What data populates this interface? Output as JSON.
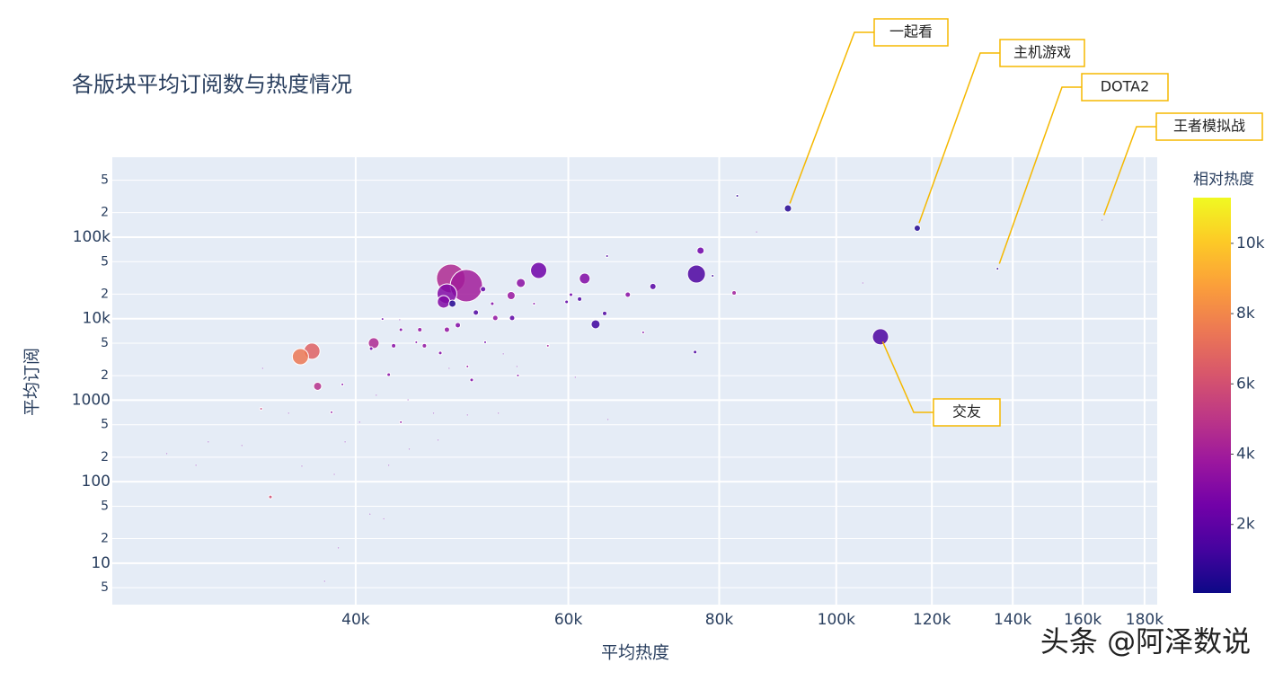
{
  "chart_data": {
    "type": "scatter",
    "title": "各版块平均订阅数与热度情况",
    "x_label": "平均热度",
    "y_label": "平均订阅",
    "log_x": true,
    "log_y": true,
    "grid": true,
    "xlim": [
      25150,
      184400
    ],
    "ylim": [
      3.1,
      957000
    ],
    "xticks": [
      {
        "value": 40000,
        "label": "40k"
      },
      {
        "value": 60000,
        "label": "60k"
      },
      {
        "value": 80000,
        "label": "80k"
      },
      {
        "value": 100000,
        "label": "100k"
      },
      {
        "value": 120000,
        "label": "120k"
      },
      {
        "value": 140000,
        "label": "140k"
      },
      {
        "value": 160000,
        "label": "160k"
      },
      {
        "value": 180000,
        "label": "180k"
      }
    ],
    "yticks": [
      5,
      10,
      {
        "value": 20,
        "label": "2"
      },
      {
        "value": 50,
        "label": "5"
      },
      100,
      {
        "value": 200,
        "label": "2"
      },
      {
        "value": 500,
        "label": "5"
      },
      1000,
      {
        "value": 2000,
        "label": "2"
      },
      {
        "value": 5000,
        "label": "5"
      },
      {
        "value": 10000,
        "label": "10k"
      },
      {
        "value": 20000,
        "label": "2"
      },
      {
        "value": 50000,
        "label": "5"
      },
      {
        "value": 100000,
        "label": "100k"
      },
      {
        "value": 200000,
        "label": "2"
      },
      {
        "value": 500000,
        "label": "5"
      }
    ],
    "x": [
      91200,
      116700,
      136000,
      166000,
      108800,
      47960,
      49400,
      47600,
      47300,
      56700,
      76600,
      61900,
      54800,
      53800,
      36800,
      36000,
      41400,
      37200,
      77200,
      70500,
      63200,
      82300,
      67200,
      48100,
      51000,
      50300,
      52200,
      53900,
      64300,
      61300,
      60300,
      59800,
      48600,
      47600,
      45200,
      43600,
      43000,
      45600,
      47000,
      49900,
      41200,
      42600,
      43600,
      34000,
      33400,
      38200,
      57700,
      69200,
      76400,
      64600,
      82800,
      79000,
      51900,
      56200,
      51200,
      44900,
      49500,
      54500,
      42100,
      39000,
      27900,
      29500,
      30200,
      32200,
      33500,
      35200,
      36100,
      38400,
      38700,
      37700,
      39200,
      41100,
      42200,
      42600,
      44300,
      46800,
      49500,
      52500,
      54400,
      60800,
      64700,
      105200,
      85900,
      44200,
      46400,
      47800,
      53000,
      43500,
      40300,
      41600
    ],
    "y": [
      225000,
      129000,
      41000,
      162000,
      6000,
      31100,
      25400,
      20200,
      16100,
      39100,
      35300,
      31100,
      27400,
      19200,
      3990,
      3420,
      5010,
      1480,
      68400,
      24800,
      8530,
      20700,
      19700,
      15300,
      23000,
      11900,
      10200,
      10200,
      11600,
      17400,
      19700,
      16100,
      8320,
      7330,
      7330,
      7330,
      4650,
      4650,
      3790,
      1770,
      4300,
      2060,
      537,
      65,
      785,
      710,
      4650,
      6790,
      3890,
      58700,
      321000,
      33600,
      15300,
      15300,
      5140,
      5140,
      2590,
      2010,
      9900,
      1560,
      221,
      159,
      308,
      278,
      2460,
      692,
      155,
      123,
      15.4,
      6.0,
      308,
      40,
      35,
      159,
      251,
      324,
      658,
      692,
      2590,
      1910,
      580,
      27400,
      116000,
      1010,
      692,
      2460,
      3700,
      9690,
      537,
      1150
    ],
    "sizes": [
      8,
      7,
      3,
      2,
      18,
      32,
      36,
      22,
      14,
      18,
      20,
      12,
      10,
      9,
      18,
      18,
      12,
      9,
      8,
      7,
      10,
      5,
      6,
      8,
      6,
      6,
      6,
      6,
      5,
      5,
      4,
      4,
      6,
      6,
      5,
      4,
      5,
      5,
      4,
      4,
      4,
      4,
      3,
      4,
      3,
      3,
      3,
      3,
      4,
      3,
      3,
      3,
      4,
      3,
      3,
      3,
      3,
      3,
      3,
      3,
      2,
      2,
      2,
      2,
      2,
      2,
      2,
      2,
      2,
      2,
      2,
      2,
      2,
      2,
      2,
      2,
      2,
      2,
      2,
      2,
      2,
      2,
      2,
      2,
      2,
      2,
      2,
      2,
      2,
      2
    ],
    "color_values": [
      600,
      500,
      800,
      900,
      1500,
      4500,
      4000,
      3000,
      3000,
      2500,
      1500,
      3000,
      3300,
      3700,
      6700,
      7500,
      4500,
      4800,
      2500,
      1800,
      1200,
      4000,
      3200,
      500,
      2000,
      1500,
      3500,
      2000,
      1500,
      1500,
      2500,
      2000,
      3000,
      3500,
      3500,
      3000,
      3200,
      3500,
      3000,
      3000,
      2500,
      3200,
      3500,
      6000,
      5500,
      3500,
      4000,
      3000,
      1500,
      1500,
      800,
      1000,
      3000,
      3000,
      2500,
      3000,
      3500,
      3000,
      2500,
      3000,
      2500,
      2500,
      2500,
      2500,
      2500,
      2500,
      2500,
      2500,
      2500,
      2500,
      2500,
      2500,
      2500,
      2500,
      2500,
      2500,
      2500,
      2500,
      2500,
      2500,
      2500,
      2500,
      2500,
      2500,
      2500,
      2500,
      2500,
      2500,
      2500,
      2500
    ],
    "colorscale": [
      "#0d0887",
      "#46039f",
      "#7201a8",
      "#9c179e",
      "#bd3786",
      "#d8576b",
      "#ed7953",
      "#fb9f3a",
      "#fdca26",
      "#f0f921"
    ],
    "colorbar": {
      "title": "相对热度",
      "range": [
        50,
        11300
      ],
      "ticks": [
        {
          "value": 2000,
          "label": "2k"
        },
        {
          "value": 4000,
          "label": "4k"
        },
        {
          "value": 6000,
          "label": "6k"
        },
        {
          "value": 8000,
          "label": "8k"
        },
        {
          "value": 10000,
          "label": "10k"
        }
      ]
    },
    "annotations": [
      {
        "text": "一起看",
        "x": 91200,
        "y": 225000
      },
      {
        "text": "主机游戏",
        "x": 116700,
        "y": 129000
      },
      {
        "text": "DOTA2",
        "x": 136000,
        "y": 41000
      },
      {
        "text": "王者模拟战",
        "x": 166000,
        "y": 162000
      },
      {
        "text": "交友",
        "x": 108800,
        "y": 6000
      }
    ],
    "watermark": "头条 @阿泽数说"
  }
}
